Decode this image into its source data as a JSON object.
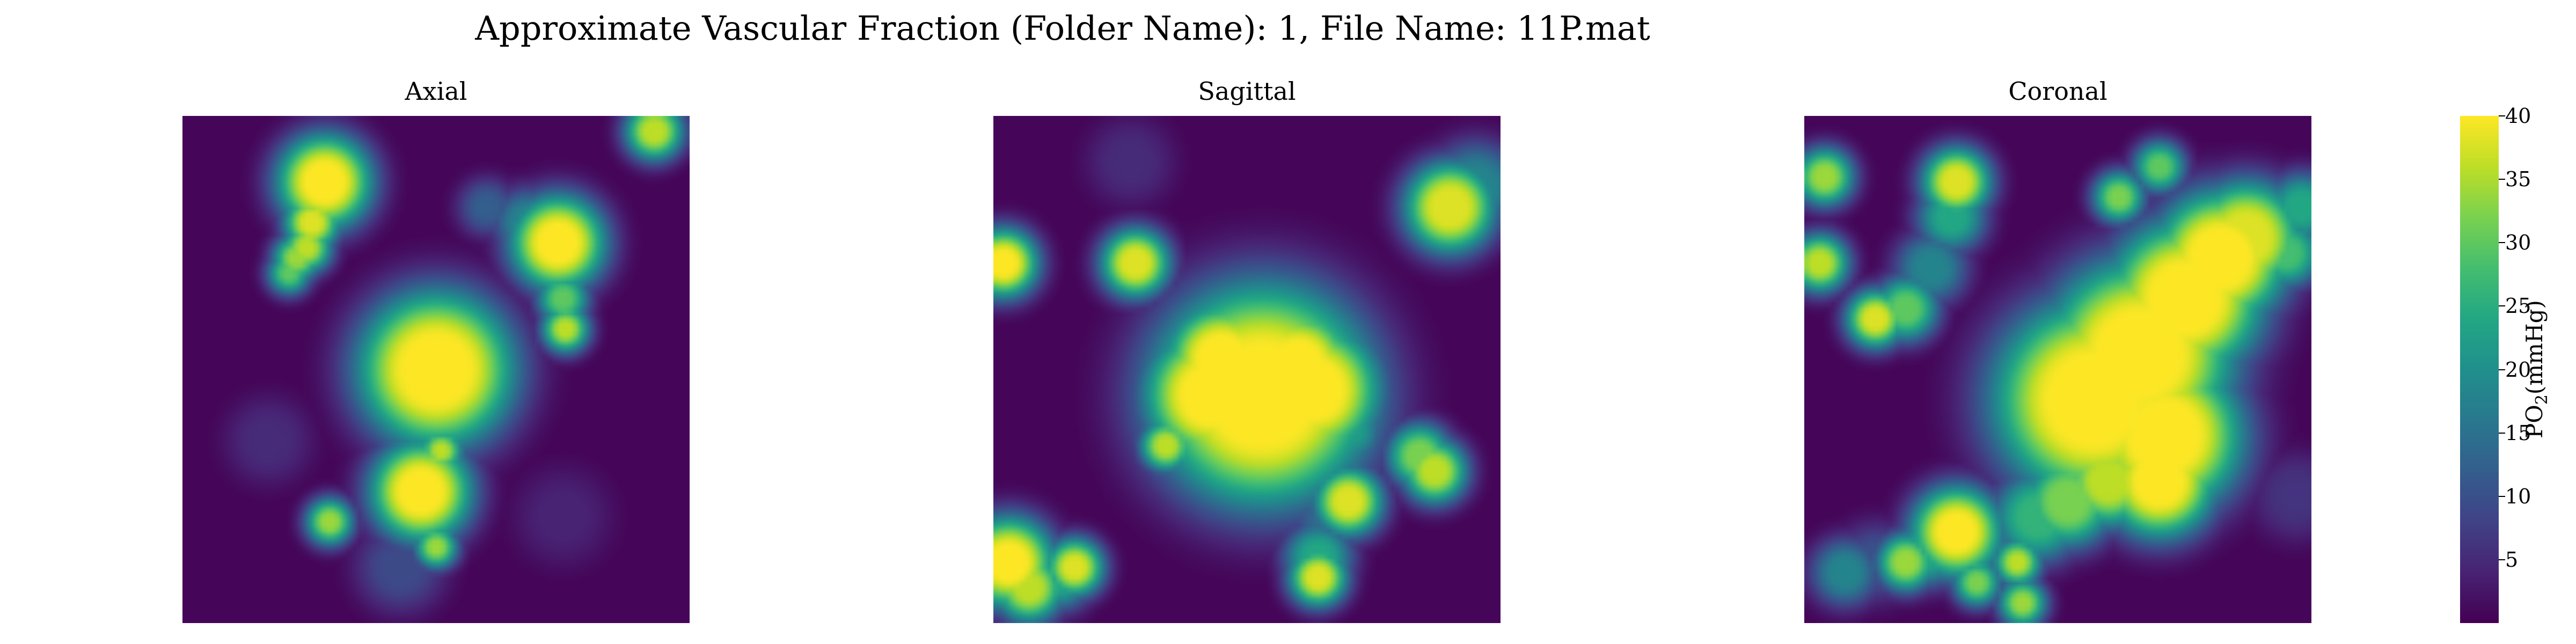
{
  "chart_data": {
    "type": "heatmap",
    "title": "Approximate Vascular Fraction (Folder Name): 1, File Name: 11P.mat",
    "colormap": "viridis",
    "grid": false,
    "panels": [
      {
        "title": "Axial",
        "blobs": [
          {
            "cx": 0.28,
            "cy": 0.13,
            "r": 0.032,
            "v": 40
          },
          {
            "cx": 0.255,
            "cy": 0.21,
            "r": 0.014,
            "v": 38
          },
          {
            "cx": 0.245,
            "cy": 0.26,
            "r": 0.011,
            "v": 36
          },
          {
            "cx": 0.225,
            "cy": 0.28,
            "r": 0.01,
            "v": 34
          },
          {
            "cx": 0.21,
            "cy": 0.31,
            "r": 0.008,
            "v": 30
          },
          {
            "cx": 0.74,
            "cy": 0.25,
            "r": 0.032,
            "v": 40
          },
          {
            "cx": 0.68,
            "cy": 0.21,
            "r": 0.02,
            "v": 18
          },
          {
            "cx": 0.6,
            "cy": 0.18,
            "r": 0.015,
            "v": 12
          },
          {
            "cx": 0.75,
            "cy": 0.36,
            "r": 0.012,
            "v": 30
          },
          {
            "cx": 0.755,
            "cy": 0.42,
            "r": 0.01,
            "v": 36
          },
          {
            "cx": 0.93,
            "cy": 0.03,
            "r": 0.015,
            "v": 36
          },
          {
            "cx": 0.5,
            "cy": 0.5,
            "r": 0.06,
            "v": 40
          },
          {
            "cx": 0.5,
            "cy": 0.62,
            "r": 0.012,
            "v": 24
          },
          {
            "cx": 0.51,
            "cy": 0.66,
            "r": 0.008,
            "v": 36
          },
          {
            "cx": 0.47,
            "cy": 0.74,
            "r": 0.035,
            "v": 40
          },
          {
            "cx": 0.49,
            "cy": 0.82,
            "r": 0.014,
            "v": 18
          },
          {
            "cx": 0.5,
            "cy": 0.85,
            "r": 0.008,
            "v": 34
          },
          {
            "cx": 0.43,
            "cy": 0.89,
            "r": 0.03,
            "v": 9
          },
          {
            "cx": 0.29,
            "cy": 0.8,
            "r": 0.01,
            "v": 34
          },
          {
            "cx": 0.17,
            "cy": 0.64,
            "r": 0.03,
            "v": 5
          },
          {
            "cx": 0.75,
            "cy": 0.79,
            "r": 0.035,
            "v": 4
          }
        ]
      },
      {
        "title": "Sagittal",
        "blobs": [
          {
            "cx": 0.53,
            "cy": 0.55,
            "r": 0.09,
            "v": 40
          },
          {
            "cx": 0.43,
            "cy": 0.55,
            "r": 0.05,
            "v": 40
          },
          {
            "cx": 0.63,
            "cy": 0.54,
            "r": 0.05,
            "v": 40
          },
          {
            "cx": 0.45,
            "cy": 0.48,
            "r": 0.04,
            "v": 40
          },
          {
            "cx": 0.6,
            "cy": 0.49,
            "r": 0.04,
            "v": 40
          },
          {
            "cx": 0.9,
            "cy": 0.18,
            "r": 0.03,
            "v": 38
          },
          {
            "cx": 0.95,
            "cy": 0.14,
            "r": 0.03,
            "v": 18
          },
          {
            "cx": 0.02,
            "cy": 0.29,
            "r": 0.02,
            "v": 40
          },
          {
            "cx": 0.28,
            "cy": 0.29,
            "r": 0.02,
            "v": 38
          },
          {
            "cx": 0.34,
            "cy": 0.65,
            "r": 0.012,
            "v": 36
          },
          {
            "cx": 0.7,
            "cy": 0.62,
            "r": 0.02,
            "v": 22
          },
          {
            "cx": 0.84,
            "cy": 0.67,
            "r": 0.018,
            "v": 32
          },
          {
            "cx": 0.87,
            "cy": 0.7,
            "r": 0.018,
            "v": 36
          },
          {
            "cx": 0.7,
            "cy": 0.76,
            "r": 0.02,
            "v": 38
          },
          {
            "cx": 0.66,
            "cy": 0.8,
            "r": 0.022,
            "v": 14
          },
          {
            "cx": 0.64,
            "cy": 0.87,
            "r": 0.02,
            "v": 24
          },
          {
            "cx": 0.64,
            "cy": 0.91,
            "r": 0.015,
            "v": 38
          },
          {
            "cx": 0.03,
            "cy": 0.88,
            "r": 0.03,
            "v": 40
          },
          {
            "cx": 0.07,
            "cy": 0.93,
            "r": 0.02,
            "v": 36
          },
          {
            "cx": 0.13,
            "cy": 0.91,
            "r": 0.018,
            "v": 24
          },
          {
            "cx": 0.16,
            "cy": 0.89,
            "r": 0.015,
            "v": 38
          },
          {
            "cx": 0.27,
            "cy": 0.09,
            "r": 0.03,
            "v": 5
          }
        ]
      },
      {
        "title": "Coronal",
        "blobs": [
          {
            "cx": 0.57,
            "cy": 0.56,
            "r": 0.08,
            "v": 40
          },
          {
            "cx": 0.66,
            "cy": 0.47,
            "r": 0.075,
            "v": 40
          },
          {
            "cx": 0.75,
            "cy": 0.36,
            "r": 0.06,
            "v": 40
          },
          {
            "cx": 0.82,
            "cy": 0.28,
            "r": 0.05,
            "v": 40
          },
          {
            "cx": 0.87,
            "cy": 0.24,
            "r": 0.04,
            "v": 38
          },
          {
            "cx": 0.71,
            "cy": 0.63,
            "r": 0.06,
            "v": 40
          },
          {
            "cx": 0.7,
            "cy": 0.72,
            "r": 0.04,
            "v": 40
          },
          {
            "cx": 0.6,
            "cy": 0.72,
            "r": 0.03,
            "v": 36
          },
          {
            "cx": 0.52,
            "cy": 0.76,
            "r": 0.03,
            "v": 32
          },
          {
            "cx": 0.46,
            "cy": 0.79,
            "r": 0.03,
            "v": 26
          },
          {
            "cx": 0.3,
            "cy": 0.82,
            "r": 0.03,
            "v": 40
          },
          {
            "cx": 0.24,
            "cy": 0.86,
            "r": 0.02,
            "v": 24
          },
          {
            "cx": 0.2,
            "cy": 0.88,
            "r": 0.015,
            "v": 34
          },
          {
            "cx": 0.14,
            "cy": 0.88,
            "r": 0.025,
            "v": 10
          },
          {
            "cx": 0.08,
            "cy": 0.9,
            "r": 0.02,
            "v": 18
          },
          {
            "cx": 0.51,
            "cy": 0.64,
            "r": 0.012,
            "v": 36
          },
          {
            "cx": 0.48,
            "cy": 0.62,
            "r": 0.008,
            "v": 34
          },
          {
            "cx": 0.44,
            "cy": 0.6,
            "r": 0.03,
            "v": 10
          },
          {
            "cx": 0.3,
            "cy": 0.13,
            "r": 0.02,
            "v": 38
          },
          {
            "cx": 0.29,
            "cy": 0.2,
            "r": 0.02,
            "v": 24
          },
          {
            "cx": 0.25,
            "cy": 0.3,
            "r": 0.022,
            "v": 18
          },
          {
            "cx": 0.2,
            "cy": 0.38,
            "r": 0.018,
            "v": 30
          },
          {
            "cx": 0.14,
            "cy": 0.4,
            "r": 0.015,
            "v": 38
          },
          {
            "cx": 0.04,
            "cy": 0.12,
            "r": 0.015,
            "v": 34
          },
          {
            "cx": 0.03,
            "cy": 0.29,
            "r": 0.015,
            "v": 36
          },
          {
            "cx": 0.98,
            "cy": 0.18,
            "r": 0.02,
            "v": 24
          },
          {
            "cx": 0.95,
            "cy": 0.27,
            "r": 0.02,
            "v": 28
          },
          {
            "cx": 0.7,
            "cy": 0.1,
            "r": 0.012,
            "v": 30
          },
          {
            "cx": 0.62,
            "cy": 0.16,
            "r": 0.012,
            "v": 32
          },
          {
            "cx": 0.42,
            "cy": 0.88,
            "r": 0.01,
            "v": 36
          },
          {
            "cx": 0.34,
            "cy": 0.92,
            "r": 0.01,
            "v": 32
          },
          {
            "cx": 0.43,
            "cy": 0.96,
            "r": 0.01,
            "v": 34
          },
          {
            "cx": 0.97,
            "cy": 0.75,
            "r": 0.03,
            "v": 6
          }
        ]
      }
    ],
    "colorbar": {
      "label": "PO",
      "label_sub": "2",
      "label_unit": "(mmHg)",
      "vmin": 0,
      "vmax": 40,
      "ticks": [
        "5",
        "10",
        "15",
        "20",
        "25",
        "30",
        "35",
        "40"
      ],
      "tick_values": [
        5,
        10,
        15,
        20,
        25,
        30,
        35,
        40
      ]
    }
  }
}
